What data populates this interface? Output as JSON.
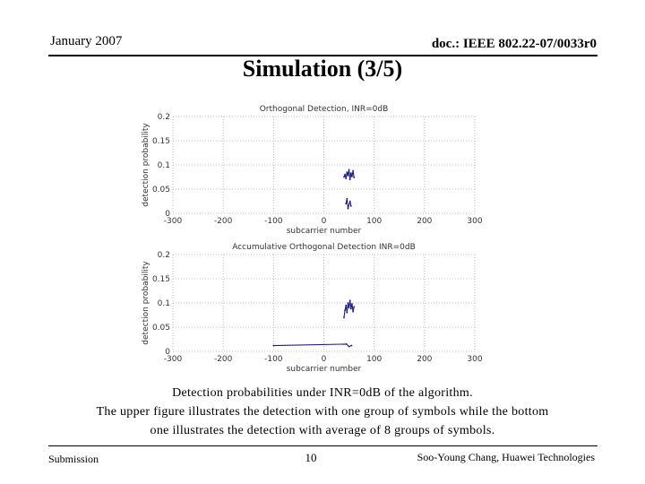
{
  "header": {
    "date": "January 2007",
    "doc_id": "doc.: IEEE 802.22-07/0033r0"
  },
  "slide": {
    "title": "Simulation (3/5)"
  },
  "chart_data": [
    {
      "type": "line",
      "title": "Orthogonal Detection, INR=0dB",
      "xlabel": "subcarrier number",
      "ylabel": "detection probability",
      "xlim": [
        -300,
        300
      ],
      "ylim": [
        0,
        0.2
      ],
      "xticks": [
        "-300",
        "-200",
        "-100",
        "0",
        "100",
        "200",
        "300"
      ],
      "yticks": [
        "0",
        "0.05",
        "0.1",
        "0.15",
        "0.2"
      ],
      "grid": true,
      "series": [
        {
          "color": "#1a1a80",
          "x": [
            40,
            42,
            44,
            46,
            48,
            50,
            52,
            54,
            56,
            58,
            60
          ],
          "y": [
            0.075,
            0.08,
            0.072,
            0.085,
            0.078,
            0.09,
            0.07,
            0.083,
            0.076,
            0.088,
            0.074
          ]
        },
        {
          "color": "#1a1a80",
          "x": [
            44,
            46,
            48,
            52,
            54
          ],
          "y": [
            0.02,
            0.03,
            0.01,
            0.025,
            0.015
          ]
        }
      ]
    },
    {
      "type": "line",
      "title": "Accumulative Orthogonal Detection INR=0dB",
      "xlabel": "subcarrier number",
      "ylabel": "detection probability",
      "xlim": [
        -300,
        300
      ],
      "ylim": [
        0,
        0.2
      ],
      "xticks": [
        "-300",
        "-200",
        "-100",
        "0",
        "100",
        "200",
        "300"
      ],
      "yticks": [
        "0",
        "0.05",
        "0.1",
        "0.15",
        "0.2"
      ],
      "grid": true,
      "series": [
        {
          "color": "#1a1a80",
          "x": [
            40,
            42,
            44,
            46,
            48,
            50,
            52,
            54,
            56,
            58,
            60
          ],
          "y": [
            0.07,
            0.085,
            0.095,
            0.08,
            0.1,
            0.09,
            0.105,
            0.088,
            0.098,
            0.082,
            0.092
          ]
        },
        {
          "color": "#1a1a80",
          "x": [
            -100,
            45,
            50,
            55
          ],
          "y": [
            0.012,
            0.015,
            0.01,
            0.012
          ]
        }
      ]
    }
  ],
  "caption": {
    "line1": "Detection probabilities under INR=0dB of the algorithm.",
    "line2": "The upper figure illustrates the detection with one group of symbols while the bottom",
    "line3": "one illustrates the detection with average of 8 groups of symbols."
  },
  "footer": {
    "left": "Submission",
    "page": "10",
    "author": "Soo-Young Chang, Huawei Technologies"
  }
}
